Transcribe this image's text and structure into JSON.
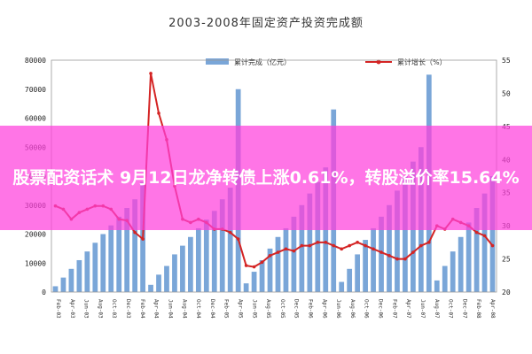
{
  "banner": {
    "headline": "股票配资话术 9月12日龙净转债上涨0.61%，转股溢价率15.64%"
  },
  "chart_data": {
    "type": "bar+line",
    "title": "2003-2008年固定资产投资完成额",
    "legend_position": "top",
    "left_axis": {
      "min": 0,
      "max": 80000,
      "ticks": [
        "0",
        "10000",
        "20000",
        "30000",
        "40000",
        "50000",
        "60000",
        "70000",
        "80000"
      ]
    },
    "right_axis": {
      "min": 20,
      "max": 55,
      "ticks": [
        "20",
        "25",
        "30",
        "35",
        "40",
        "45",
        "50",
        "55"
      ]
    },
    "series": [
      {
        "name": "累计完成（亿元）",
        "kind": "bar",
        "color": "#7aa6d8",
        "values": [
          2000,
          5000,
          8000,
          11000,
          14000,
          17000,
          20000,
          23000,
          26000,
          29000,
          32000,
          38000,
          2500,
          6000,
          9000,
          13000,
          16000,
          19000,
          22000,
          25000,
          28000,
          32000,
          36000,
          70000,
          3000,
          7000,
          11000,
          15000,
          19000,
          22000,
          26000,
          30000,
          34000,
          38000,
          43000,
          63000,
          3500,
          8000,
          13000,
          18000,
          22000,
          26000,
          30000,
          35000,
          40000,
          45000,
          50000,
          75000,
          4000,
          9000,
          14000,
          19000,
          24000,
          29000,
          34000,
          40000
        ]
      },
      {
        "name": "累计增长（%）",
        "kind": "line",
        "color": "#d42424",
        "values": [
          33,
          32.5,
          31,
          32,
          32.5,
          33,
          33,
          32.5,
          31,
          30.8,
          29,
          28,
          53,
          47,
          43,
          36,
          31,
          30.5,
          31,
          30.5,
          29.5,
          29.5,
          29,
          28,
          24,
          23.8,
          24.5,
          25.5,
          26,
          26.5,
          26.2,
          27,
          27,
          27.5,
          27.5,
          27,
          26.5,
          27,
          27.5,
          27,
          26.5,
          26,
          25.5,
          25,
          25,
          26,
          27,
          27.5,
          30,
          29.5,
          31,
          30.5,
          30,
          29,
          28.5,
          27
        ]
      }
    ],
    "x_ticks": [
      "Feb-03",
      "Apr-03",
      "Jun-03",
      "Aug-03",
      "Oct-03",
      "Dec-03",
      "Feb-04",
      "Apr-04",
      "Jun-04",
      "Aug-04",
      "Oct-04",
      "Dec-04",
      "Feb-05",
      "Apr-05",
      "Jun-05",
      "Aug-05",
      "Oct-05",
      "Dec-05",
      "Feb-06",
      "Apr-06",
      "Jun-06",
      "Aug-06",
      "Oct-06",
      "Dec-06",
      "Feb-07",
      "Apr-07",
      "Jun-07",
      "Aug-07",
      "Oct-07",
      "Dec-07",
      "Feb-08",
      "Apr-08"
    ]
  }
}
